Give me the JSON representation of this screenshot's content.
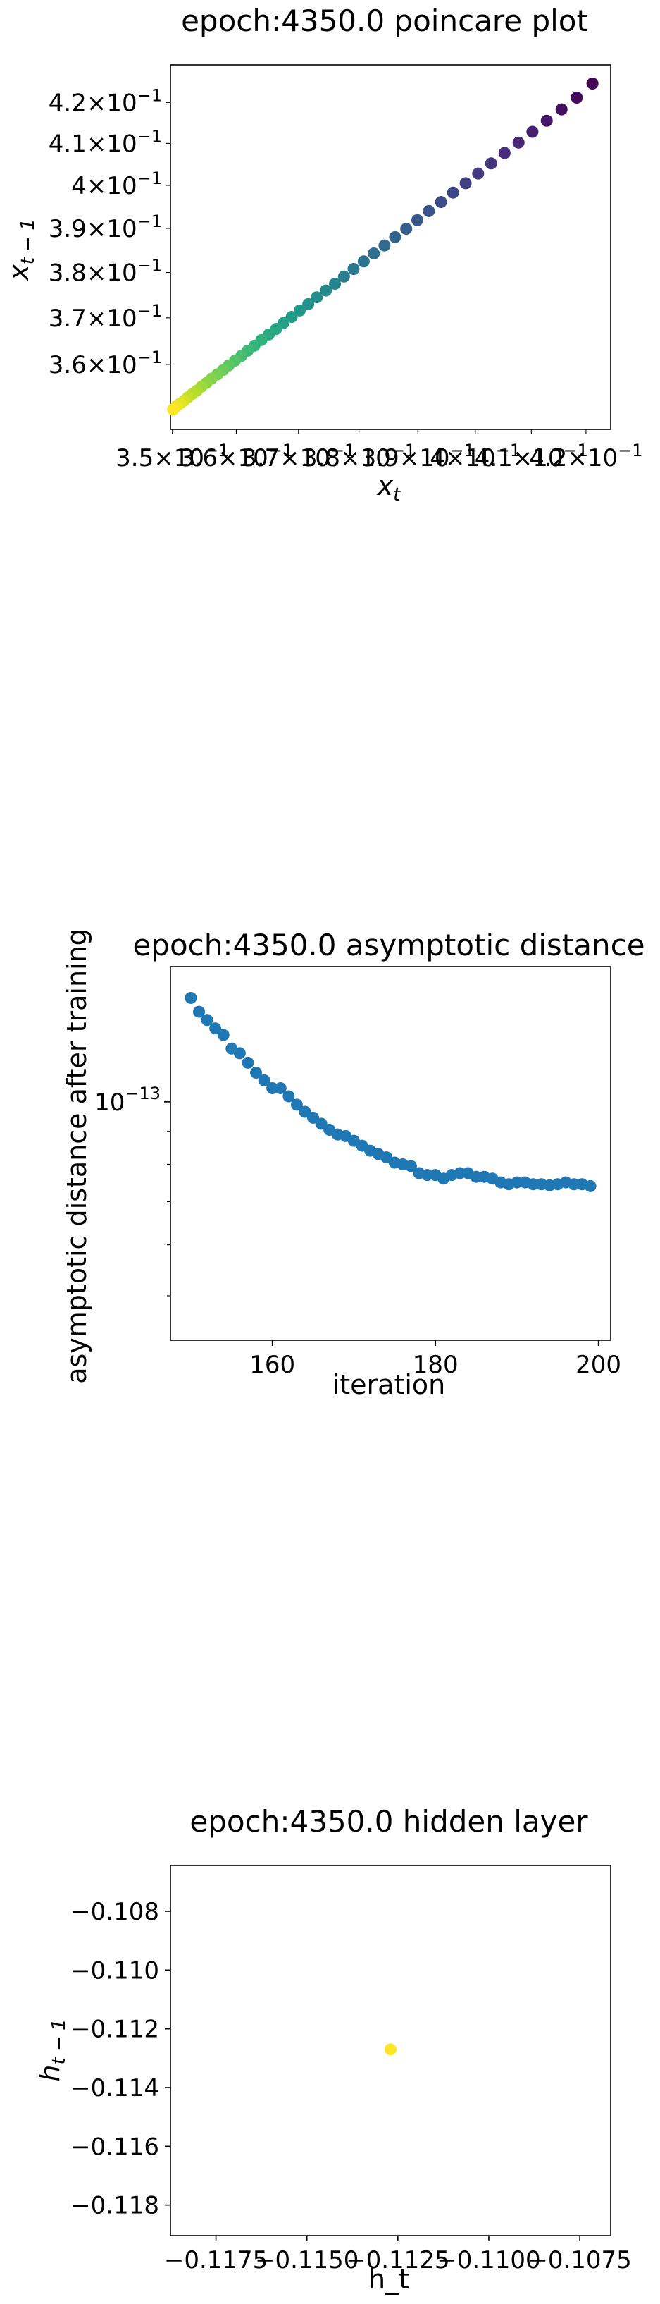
{
  "chart_data": [
    {
      "type": "scatter",
      "title": "epoch:4350.0 poincare plot",
      "xlabel": "x_t",
      "ylabel": "x_{t-1}",
      "xscale": "log",
      "yscale": "log",
      "xlim": [
        0.3497,
        0.4246
      ],
      "ylim": [
        0.3465,
        0.4294
      ],
      "xticks": [
        {
          "v": 0.35,
          "mant": "3.5",
          "exp": "−1"
        },
        {
          "v": 0.36,
          "mant": "3.6",
          "exp": "−1"
        },
        {
          "v": 0.37,
          "mant": "3.7",
          "exp": "−1"
        },
        {
          "v": 0.38,
          "mant": "3.8",
          "exp": "−1"
        },
        {
          "v": 0.39,
          "mant": "3.9",
          "exp": "−1"
        },
        {
          "v": 0.4,
          "mant": "4",
          "exp": "−1"
        },
        {
          "v": 0.41,
          "mant": "4.1",
          "exp": "−1"
        },
        {
          "v": 0.42,
          "mant": "4.2",
          "exp": "−1"
        }
      ],
      "yticks": [
        {
          "v": 0.36,
          "mant": "3.6",
          "exp": "−1"
        },
        {
          "v": 0.37,
          "mant": "3.7",
          "exp": "−1"
        },
        {
          "v": 0.38,
          "mant": "3.8",
          "exp": "−1"
        },
        {
          "v": 0.39,
          "mant": "3.9",
          "exp": "−1"
        },
        {
          "v": 0.4,
          "mant": "4",
          "exp": "−1"
        },
        {
          "v": 0.41,
          "mant": "4.1",
          "exp": "−1"
        },
        {
          "v": 0.42,
          "mant": "4.2",
          "exp": "−1"
        }
      ],
      "colormap": "viridis",
      "color_order": "last point yellow (#fde725), first point purple (#440154)",
      "points": [
        [
          0.4212,
          0.4247
        ],
        [
          0.4183,
          0.4212
        ],
        [
          0.4155,
          0.4183
        ],
        [
          0.4128,
          0.4155
        ],
        [
          0.4102,
          0.4128
        ],
        [
          0.4077,
          0.4102
        ],
        [
          0.4052,
          0.4077
        ],
        [
          0.4028,
          0.4052
        ],
        [
          0.4005,
          0.4028
        ],
        [
          0.3983,
          0.4005
        ],
        [
          0.3961,
          0.3983
        ],
        [
          0.394,
          0.3961
        ],
        [
          0.3919,
          0.394
        ],
        [
          0.3899,
          0.3919
        ],
        [
          0.388,
          0.3899
        ],
        [
          0.3861,
          0.388
        ],
        [
          0.3843,
          0.3861
        ],
        [
          0.3825,
          0.3843
        ],
        [
          0.3808,
          0.3825
        ],
        [
          0.3791,
          0.3808
        ],
        [
          0.3775,
          0.3791
        ],
        [
          0.376,
          0.3775
        ],
        [
          0.3745,
          0.376
        ],
        [
          0.373,
          0.3745
        ],
        [
          0.3716,
          0.373
        ],
        [
          0.3702,
          0.3716
        ],
        [
          0.3689,
          0.3702
        ],
        [
          0.3676,
          0.3689
        ],
        [
          0.3664,
          0.3676
        ],
        [
          0.3652,
          0.3664
        ],
        [
          0.364,
          0.3652
        ],
        [
          0.3629,
          0.364
        ],
        [
          0.3618,
          0.3629
        ],
        [
          0.3608,
          0.3618
        ],
        [
          0.3598,
          0.3608
        ],
        [
          0.3588,
          0.3598
        ],
        [
          0.3579,
          0.3588
        ],
        [
          0.357,
          0.3579
        ],
        [
          0.3561,
          0.357
        ],
        [
          0.3553,
          0.3561
        ],
        [
          0.3545,
          0.3553
        ],
        [
          0.3538,
          0.3545
        ],
        [
          0.3531,
          0.3538
        ],
        [
          0.3524,
          0.3531
        ],
        [
          0.3518,
          0.3524
        ],
        [
          0.3512,
          0.3518
        ],
        [
          0.3506,
          0.3512
        ],
        [
          0.3501,
          0.3506
        ]
      ]
    },
    {
      "type": "scatter",
      "title": "epoch:4350.0 asymptotic distance",
      "xlabel": "iteration",
      "ylabel": "asymptotic distance after training",
      "xscale": "linear",
      "yscale": "log",
      "xlim": [
        147.5,
        201.5
      ],
      "ylim_log10": [
        -13.37,
        -12.79
      ],
      "xticks": [
        160,
        180,
        200
      ],
      "yticks": [
        {
          "log10": -13,
          "base": "10",
          "exp": "−13"
        }
      ],
      "color": "#1f77b4",
      "x": [
        150,
        151,
        152,
        153,
        154,
        155,
        156,
        157,
        158,
        159,
        160,
        161,
        162,
        163,
        164,
        165,
        166,
        167,
        168,
        169,
        170,
        171,
        172,
        173,
        174,
        175,
        176,
        177,
        178,
        179,
        180,
        181,
        182,
        183,
        184,
        185,
        186,
        187,
        188,
        189,
        190,
        191,
        192,
        193,
        194,
        195,
        196,
        197,
        198,
        199
      ],
      "y": [
        1.45e-13,
        1.38e-13,
        1.34e-13,
        1.3e-13,
        1.27e-13,
        1.21e-13,
        1.19e-13,
        1.15e-13,
        1.11e-13,
        1.08e-13,
        1.05e-13,
        1.05e-13,
        1.02e-13,
        9.9e-14,
        9.65e-14,
        9.45e-14,
        9.25e-14,
        9.05e-14,
        8.9e-14,
        8.85e-14,
        8.7e-14,
        8.55e-14,
        8.4e-14,
        8.3e-14,
        8.2e-14,
        8.05e-14,
        8e-14,
        7.95e-14,
        7.75e-14,
        7.7e-14,
        7.7e-14,
        7.6e-14,
        7.7e-14,
        7.75e-14,
        7.75e-14,
        7.65e-14,
        7.65e-14,
        7.6e-14,
        7.5e-14,
        7.45e-14,
        7.5e-14,
        7.5e-14,
        7.45e-14,
        7.45e-14,
        7.42e-14,
        7.45e-14,
        7.5e-14,
        7.45e-14,
        7.45e-14,
        7.4e-14
      ]
    },
    {
      "type": "scatter",
      "title": "epoch:4350.0 hidden layer",
      "xlabel": "h_t",
      "ylabel": "h_{t-1}",
      "xscale": "linear",
      "yscale": "linear",
      "xlim": [
        -0.11875,
        -0.10665
      ],
      "ylim": [
        -0.11904,
        -0.10644
      ],
      "xticks": [
        {
          "v": -0.1175,
          "label": "−0.1175"
        },
        {
          "v": -0.115,
          "label": "−0.1150"
        },
        {
          "v": -0.1125,
          "label": "−0.1125"
        },
        {
          "v": -0.11,
          "label": "−0.1100"
        },
        {
          "v": -0.1075,
          "label": "−0.1075"
        }
      ],
      "yticks": [
        {
          "v": -0.108,
          "label": "−0.108"
        },
        {
          "v": -0.11,
          "label": "−0.110"
        },
        {
          "v": -0.112,
          "label": "−0.112"
        },
        {
          "v": -0.114,
          "label": "−0.114"
        },
        {
          "v": -0.116,
          "label": "−0.116"
        },
        {
          "v": -0.118,
          "label": "−0.118"
        }
      ],
      "color": "#fde725",
      "points": [
        [
          -0.1127,
          -0.1127
        ]
      ]
    }
  ]
}
